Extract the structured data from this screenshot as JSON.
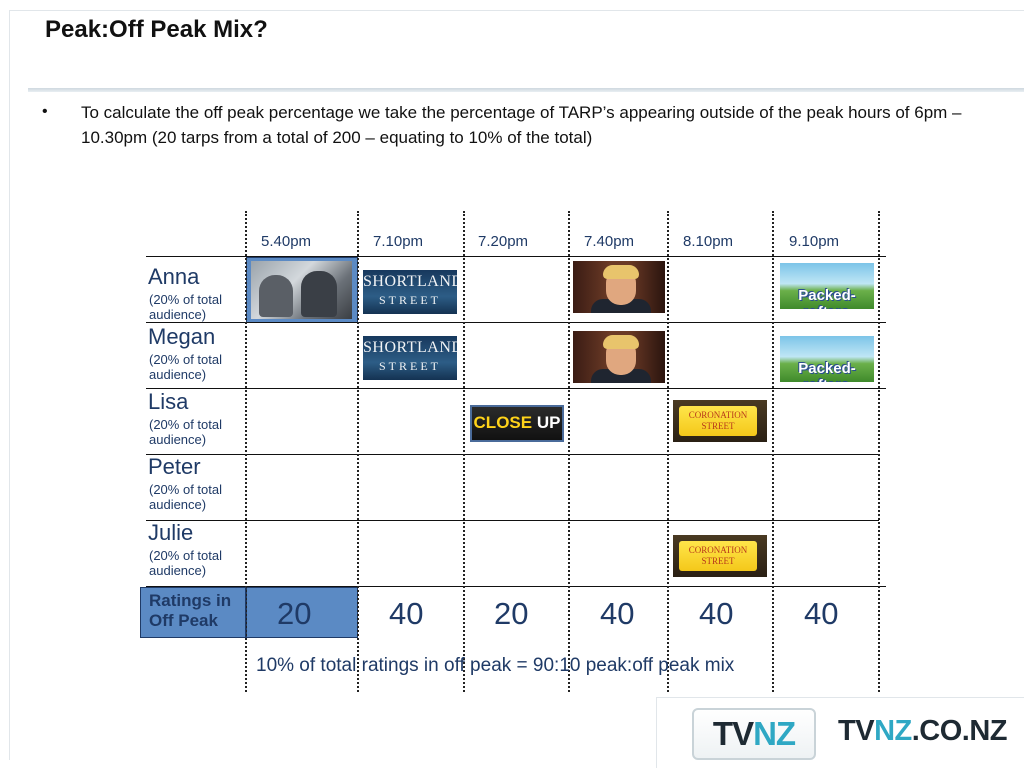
{
  "slide": {
    "title": "Peak:Off Peak Mix?",
    "bullet": "To calculate the off peak percentage we take the percentage of TARP’s appearing outside of the peak hours of 6pm – 10.30pm (20 tarps from a total of 200 – equating to 10% of the total)"
  },
  "table": {
    "times": [
      "5.40pm",
      "7.10pm",
      "7.20pm",
      "7.40pm",
      "8.10pm",
      "9.10pm"
    ],
    "rows": [
      {
        "name": "Anna",
        "sub": "(20% of total audience)"
      },
      {
        "name": "Megan",
        "sub": "(20% of total audience)"
      },
      {
        "name": "Lisa",
        "sub": "(20% of total audience)"
      },
      {
        "name": "Peter",
        "sub": "(20% of total audience)"
      },
      {
        "name": "Julie",
        "sub": "(20% of total audience)"
      }
    ],
    "ratings_label": "Ratings in Off Peak",
    "ratings": [
      "20",
      "40",
      "20",
      "40",
      "40",
      "40"
    ],
    "summary": "10% of total ratings in off peak = 90:10 peak:off peak mix"
  },
  "thumbs": {
    "shortland_line1": "SHORTLAND",
    "shortland_line2": "STREET",
    "packed": "Packed-rafters",
    "closeup_a": "CLOSE",
    "closeup_b": "UP",
    "coro": "CORONATION STREET"
  },
  "footer": {
    "logo_tv": "TV",
    "logo_nz": "NZ",
    "site_tv": "TV",
    "site_nz": "NZ",
    "site_rest": ".CO.NZ"
  },
  "colors": {
    "accent_blue": "#5b8ac4",
    "text_navy": "#1f3a66",
    "tvnz_teal": "#2fa8c4"
  }
}
